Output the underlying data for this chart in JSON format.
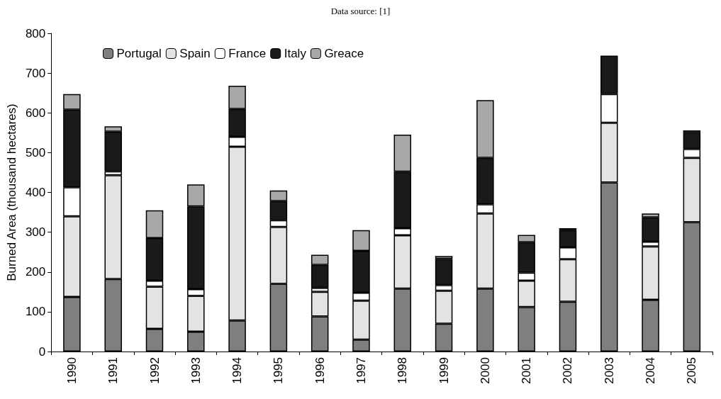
{
  "chart_data": {
    "type": "bar",
    "title": "Data source: [1]",
    "ylabel": "Burned Area (thousand hectares)",
    "stacked": true,
    "legend": "top left",
    "grid": false,
    "categories": [
      "1990",
      "1991",
      "1992",
      "1993",
      "1994",
      "1995",
      "1996",
      "1997",
      "1998",
      "1999",
      "2000",
      "2001",
      "2002",
      "2003",
      "2004",
      "2005"
    ],
    "ylim": [
      0,
      800
    ],
    "yticks": [
      0,
      100,
      200,
      300,
      400,
      500,
      600,
      700,
      800
    ],
    "series": [
      {
        "name": "Portugal",
        "color": "#7f7f7f",
        "values": [
          137,
          182,
          57,
          50,
          78,
          170,
          88,
          30,
          158,
          70,
          158,
          112,
          125,
          425,
          130,
          325
        ]
      },
      {
        "name": "Spain",
        "color": "#e3e3e3",
        "values": [
          203,
          261,
          106,
          90,
          437,
          143,
          62,
          98,
          134,
          83,
          189,
          66,
          107,
          150,
          134,
          162
        ]
      },
      {
        "name": "France",
        "color": "#ffffff",
        "values": [
          73,
          10,
          15,
          17,
          25,
          17,
          10,
          20,
          18,
          14,
          23,
          20,
          30,
          72,
          12,
          22
        ]
      },
      {
        "name": "Italy",
        "color": "#1a1a1a",
        "values": [
          195,
          100,
          107,
          208,
          70,
          48,
          58,
          105,
          142,
          66,
          117,
          77,
          43,
          97,
          61,
          41
        ]
      },
      {
        "name": "Greace",
        "color": "#a8a8a8",
        "values": [
          39,
          13,
          70,
          55,
          58,
          27,
          25,
          52,
          93,
          7,
          145,
          18,
          5,
          null,
          10,
          6
        ]
      }
    ]
  }
}
